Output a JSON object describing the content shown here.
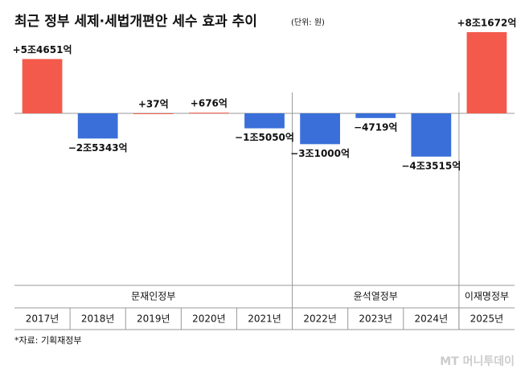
{
  "chart_data": {
    "type": "bar",
    "title": "최근 정부 세제·세법개편안 세수 효과 추이",
    "unit_note": "(단위: 원)",
    "categories": [
      "2017년",
      "2018년",
      "2019년",
      "2020년",
      "2021년",
      "2022년",
      "2023년",
      "2024년",
      "2025년"
    ],
    "values": [
      54651,
      -25343,
      37,
      676,
      -15050,
      -31000,
      -4719,
      -43515,
      81672
    ],
    "value_labels": [
      "+5조4651억",
      "−2조5343억",
      "+37억",
      "+676억",
      "−1조5050억",
      "−3조1000억",
      "−4719억",
      "−4조3515억",
      "+8조1672억"
    ],
    "positive_color": "#f35a4b",
    "negative_color": "#3a6fd9",
    "groups": [
      {
        "name": "문재인정부",
        "count": 5
      },
      {
        "name": "윤석열정부",
        "count": 3
      },
      {
        "name": "이재명정부",
        "count": 1
      }
    ],
    "source": "*자료: 기획재정부",
    "watermark": "MT 머니투데이"
  }
}
